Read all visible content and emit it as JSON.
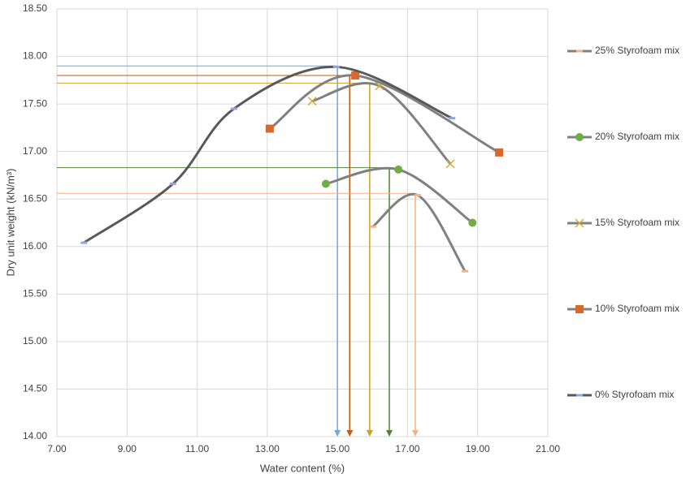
{
  "chart_data": {
    "type": "line",
    "x_label": "Water content (%)",
    "y_label": "Dry unit weight (kN/m³)",
    "xlim": [
      7,
      21
    ],
    "ylim": [
      14,
      18.5
    ],
    "xticks": [
      {
        "value": 7,
        "label": "7.00"
      },
      {
        "value": 9,
        "label": "9.00"
      },
      {
        "value": 11,
        "label": "11.00"
      },
      {
        "value": 13,
        "label": "13.00"
      },
      {
        "value": 15,
        "label": "15.00"
      },
      {
        "value": 17,
        "label": "17.00"
      },
      {
        "value": 19,
        "label": "19.00"
      },
      {
        "value": 21,
        "label": "21.00"
      }
    ],
    "yticks": [
      {
        "value": 14,
        "label": "14.00"
      },
      {
        "value": 14.5,
        "label": "14.50"
      },
      {
        "value": 15,
        "label": "15.00"
      },
      {
        "value": 15.5,
        "label": "15.50"
      },
      {
        "value": 16,
        "label": "16.00"
      },
      {
        "value": 16.5,
        "label": "16.50"
      },
      {
        "value": 17,
        "label": "17.00"
      },
      {
        "value": 17.5,
        "label": "17.50"
      },
      {
        "value": 18,
        "label": "18.00"
      },
      {
        "value": 18.5,
        "label": "18.50"
      }
    ],
    "grid": true,
    "legend": "right",
    "series": [
      {
        "name": "25% Styrofoam mix",
        "color": "#808080",
        "marker": "dash",
        "marker_color": "#f4b183",
        "x": [
          16.01,
          17.29,
          18.64
        ],
        "values": [
          16.21,
          16.54,
          15.74
        ]
      },
      {
        "name": "20% Styrofoam mix",
        "color": "#808080",
        "marker": "circle",
        "marker_color": "#70ad47",
        "x": [
          14.67,
          16.74,
          18.85
        ],
        "values": [
          16.66,
          16.81,
          16.25
        ]
      },
      {
        "name": "15% Styrofoam mix",
        "color": "#808080",
        "marker": "x",
        "marker_color": "#d8a93a",
        "x": [
          14.28,
          16.2,
          18.22
        ],
        "values": [
          17.53,
          17.69,
          16.87
        ]
      },
      {
        "name": "10% Styrofoam mix",
        "color": "#808080",
        "marker": "square",
        "marker_color": "#d9692a",
        "x": [
          13.07,
          15.51,
          19.61
        ],
        "values": [
          17.24,
          17.8,
          16.99
        ]
      },
      {
        "name": "0% Styrofoam mix",
        "color": "#595959",
        "marker": "dash",
        "marker_color": "#8ea9db",
        "x": [
          7.77,
          10.31,
          12.05,
          14.97,
          18.27
        ],
        "values": [
          16.04,
          16.66,
          17.45,
          17.89,
          17.35
        ]
      }
    ],
    "reference_lines": [
      {
        "color": "#6fa8dc",
        "x": 15.0,
        "y": 17.9
      },
      {
        "color": "#c55a11",
        "x": 15.35,
        "y": 17.8
      },
      {
        "color": "#c9a227",
        "x": 15.92,
        "y": 17.72
      },
      {
        "color": "#548235",
        "x": 16.48,
        "y": 16.83
      },
      {
        "color": "#f4b183",
        "x": 17.22,
        "y": 16.56
      }
    ]
  }
}
